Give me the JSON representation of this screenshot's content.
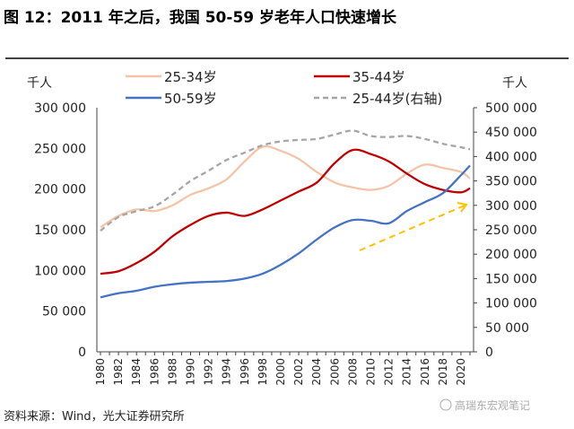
{
  "title": "图 12：2011 年之后，我国 50-59 岁老年人口快速增长",
  "source": "资料来源：Wind，光大证券研究所",
  "watermark": "高瑞东宏观笔记",
  "chart_data": {
    "type": "line",
    "left_unit": "千人",
    "right_unit": "千人",
    "ylim_left": [
      0,
      300000
    ],
    "ylim_right": [
      0,
      500000
    ],
    "left_ticks": [
      "0",
      "50 000",
      "100 000",
      "150 000",
      "200 000",
      "250 000",
      "300 000"
    ],
    "right_ticks": [
      "0",
      "50 000",
      "100 000",
      "150 000",
      "200 000",
      "250 000",
      "300 000",
      "350 000",
      "400 000",
      "450 000",
      "500 000"
    ],
    "x_tick_labels": [
      "1980",
      "1982",
      "1984",
      "1986",
      "1988",
      "1990",
      "1992",
      "1994",
      "1996",
      "1998",
      "2000",
      "2002",
      "2004",
      "2006",
      "2008",
      "2010",
      "2012",
      "2014",
      "2016",
      "2018",
      "2020"
    ],
    "legend_position": "top",
    "grid": false,
    "x": [
      1980,
      1982,
      1984,
      1986,
      1988,
      1990,
      1992,
      1994,
      1996,
      1998,
      2000,
      2002,
      2004,
      2006,
      2008,
      2010,
      2012,
      2014,
      2016,
      2018,
      2020,
      2021
    ],
    "series": [
      {
        "name": "25-34岁",
        "axis": "left",
        "color": "#f4c4a8",
        "dash": false,
        "values": [
          153000,
          167000,
          175000,
          173000,
          180000,
          193000,
          201000,
          212000,
          234000,
          252000,
          247000,
          237000,
          221000,
          208000,
          202000,
          199000,
          204000,
          219000,
          230000,
          226000,
          221000,
          213000
        ]
      },
      {
        "name": "35-44岁",
        "axis": "left",
        "color": "#c00000",
        "dash": false,
        "values": [
          96000,
          99000,
          109000,
          123000,
          142000,
          156000,
          167000,
          171000,
          167000,
          175000,
          186000,
          197000,
          208000,
          232000,
          248000,
          243000,
          234000,
          219000,
          206000,
          199000,
          196000,
          201000
        ]
      },
      {
        "name": "50-59岁",
        "axis": "left",
        "color": "#4472c4",
        "dash": false,
        "values": [
          67000,
          72000,
          75000,
          80000,
          83000,
          85000,
          86000,
          87000,
          90000,
          96000,
          107000,
          121000,
          138000,
          153000,
          162000,
          161000,
          158000,
          173000,
          184000,
          195000,
          217000,
          229000
        ]
      },
      {
        "name": "25-44岁(右轴)",
        "axis": "right",
        "color": "#a6a6a6",
        "dash": true,
        "values": [
          248000,
          276000,
          288000,
          298000,
          322000,
          350000,
          371000,
          393000,
          408000,
          423000,
          431000,
          434000,
          436000,
          445000,
          453000,
          442000,
          440000,
          442000,
          436000,
          426000,
          419000,
          415000
        ]
      }
    ],
    "annotation": {
      "type": "arrow",
      "color": "#ffc000",
      "dash": true
    }
  }
}
